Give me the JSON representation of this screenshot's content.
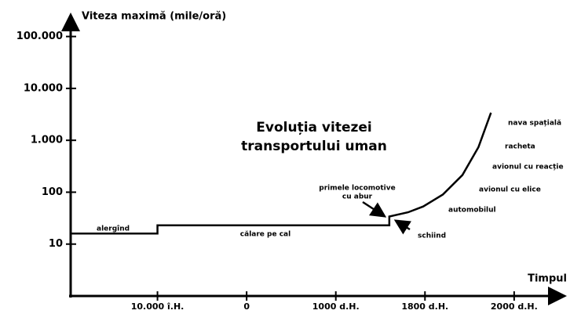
{
  "chart_data": {
    "type": "line",
    "title": [
      "Evoluția vitezei",
      "transportului uman"
    ],
    "ylabel": "Viteza maximă (mile/oră)",
    "xlabel": "Timpul",
    "log_y": true,
    "ylim": [
      1,
      300000
    ],
    "yticks": [
      {
        "value": 10,
        "label": "10"
      },
      {
        "value": 100,
        "label": "100"
      },
      {
        "value": 1000,
        "label": "1.000"
      },
      {
        "value": 10000,
        "label": "10.000"
      },
      {
        "value": 100000,
        "label": "100.000"
      }
    ],
    "xlim": [
      -1,
      4.6
    ],
    "xticks": [
      {
        "value": 0,
        "label": "10.000 î.H."
      },
      {
        "value": 1,
        "label": "0"
      },
      {
        "value": 2,
        "label": "1000 d.H."
      },
      {
        "value": 3,
        "label": "1800 d.H."
      },
      {
        "value": 4,
        "label": "2000 d.H."
      }
    ],
    "color": "#000000",
    "x": [
      -0.96,
      0,
      0,
      2.6,
      2.6,
      2.81,
      2.98,
      3.2,
      3.42,
      3.6,
      3.74
    ],
    "values": [
      16,
      16,
      23,
      23,
      34,
      41,
      53,
      90,
      214,
      740,
      3400
    ],
    "annotations": [
      [
        "alergînd"
      ],
      [
        "călare pe cal"
      ],
      [
        "primele locomotive",
        "cu abur"
      ],
      [
        "schiind"
      ],
      [
        "automobilul"
      ],
      [
        "avionul cu elice"
      ],
      [
        "avionul cu reacție"
      ],
      [
        "racheta"
      ],
      [
        "nava spațială"
      ]
    ]
  }
}
